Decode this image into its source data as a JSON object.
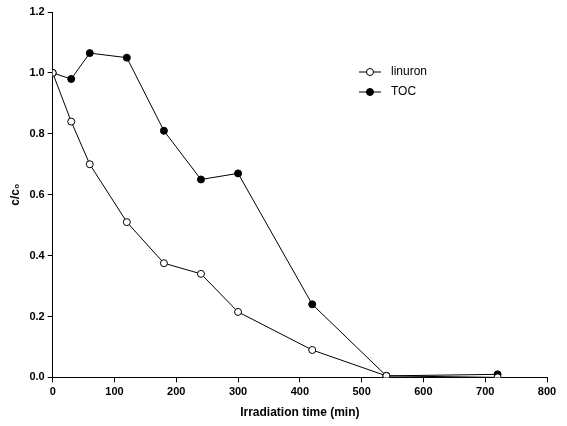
{
  "chart_data": {
    "type": "line",
    "x_label": "Irradiation time (min)",
    "y_label": "c/c₀",
    "x": [
      0,
      30,
      60,
      120,
      180,
      240,
      300,
      420,
      540,
      720
    ],
    "series": [
      {
        "name": "linuron",
        "color": "#000000",
        "marker": "open_circle",
        "line_style": "solid",
        "values": [
          1.0,
          0.84,
          0.7,
          0.51,
          0.375,
          0.34,
          0.215,
          0.09,
          0.005,
          0.0
        ]
      },
      {
        "name": "TOC",
        "color": "#000000",
        "marker": "circle",
        "line_style": "solid",
        "values": [
          1.0,
          0.98,
          1.065,
          1.05,
          0.81,
          0.65,
          0.67,
          0.24,
          0.005,
          0.01
        ]
      }
    ],
    "xlim": [
      0,
      800
    ],
    "xticks": [
      0,
      100,
      200,
      300,
      400,
      500,
      600,
      700,
      800
    ],
    "ylim": [
      0,
      1.2
    ],
    "yticks": [
      {
        "value": 0,
        "label": "0.0"
      },
      0.2,
      0.4,
      0.6,
      0.8,
      {
        "value": 1,
        "label": "1.0"
      },
      1.2
    ],
    "grid": false,
    "legend": "upper right"
  }
}
